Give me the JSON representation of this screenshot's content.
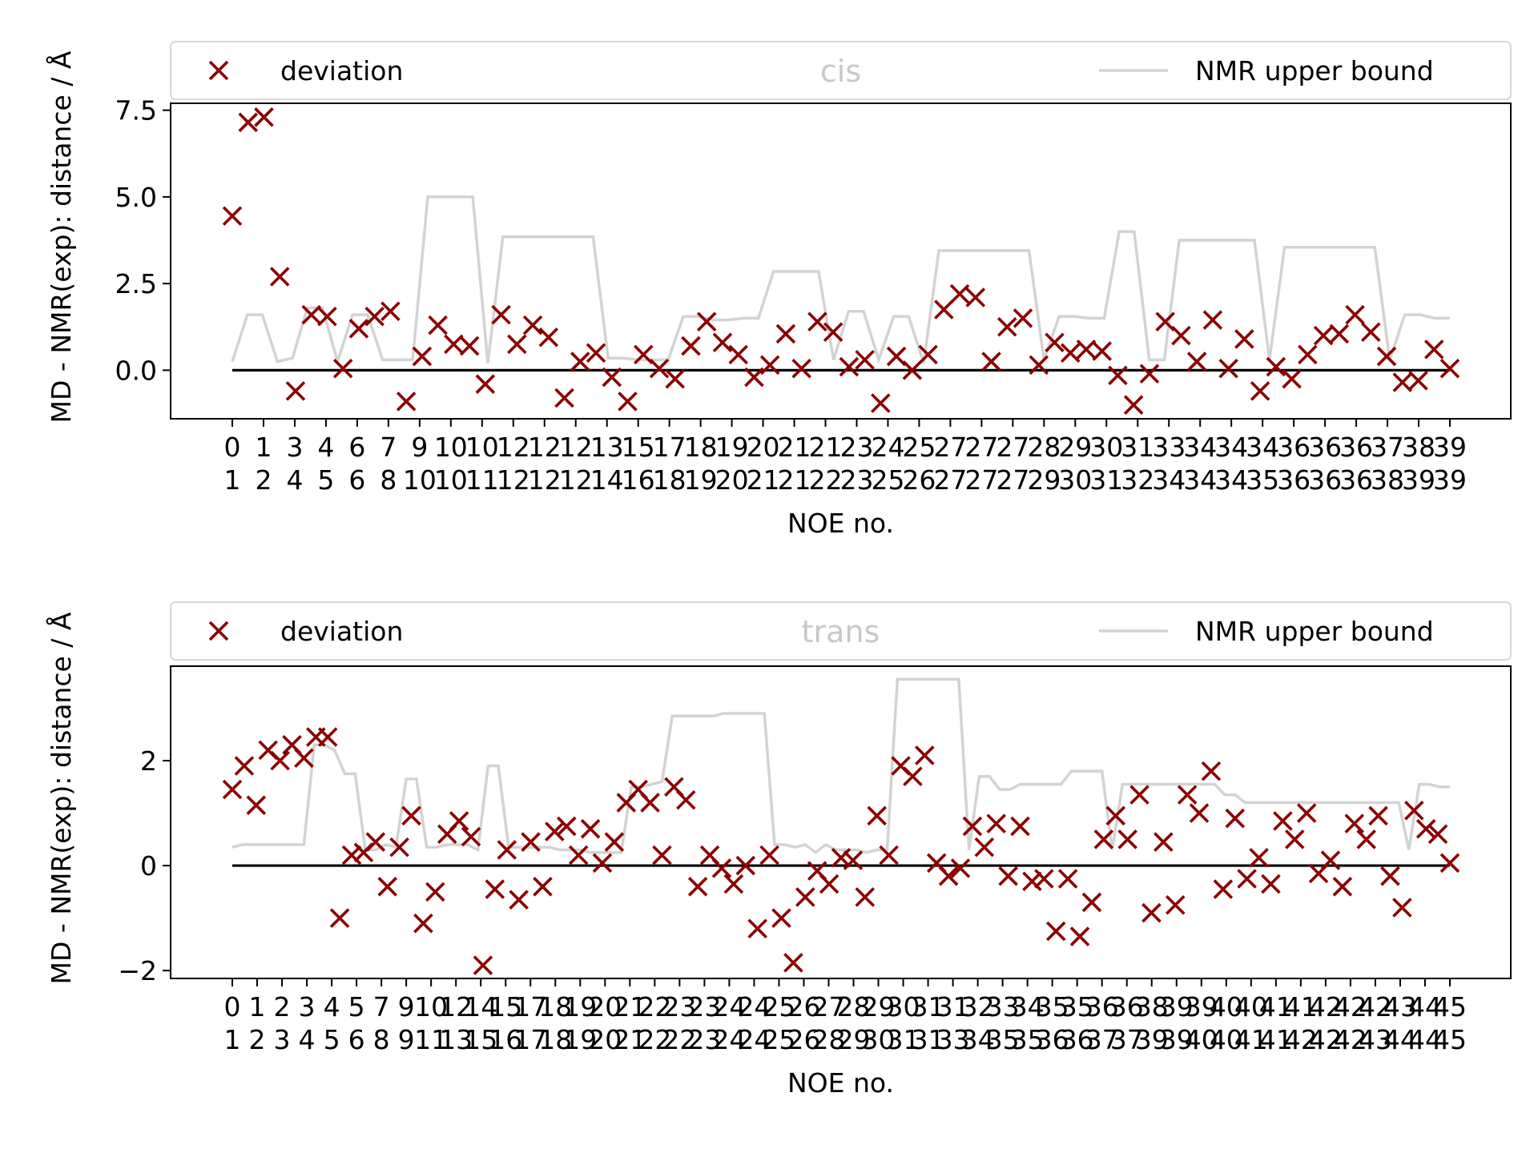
{
  "chart_data": [
    {
      "type": "scatter",
      "title": "cis",
      "xlabel": "NOE no.",
      "ylabel": "MD - NMR(exp): distance / Å",
      "ylim": [
        -1.4,
        7.7
      ],
      "yticks": [
        0.0,
        2.5,
        5.0,
        7.5
      ],
      "ytick_labels": [
        "0.0",
        "2.5",
        "5.0",
        "7.5"
      ],
      "tick_labels_row1": [
        "0",
        "1",
        "3",
        "4",
        "6",
        "7",
        "9",
        "10",
        "10",
        "12",
        "12",
        "12",
        "13",
        "15",
        "17",
        "18",
        "19",
        "20",
        "21",
        "21",
        "23",
        "24",
        "25",
        "27",
        "27",
        "27",
        "28",
        "29",
        "30",
        "31",
        "33",
        "34",
        "34",
        "34",
        "36",
        "36",
        "36",
        "37",
        "38",
        "39"
      ],
      "tick_labels_row2": [
        "1",
        "2",
        "4",
        "5",
        "6",
        "8",
        "10",
        "10",
        "11",
        "12",
        "12",
        "12",
        "14",
        "16",
        "18",
        "19",
        "20",
        "21",
        "21",
        "22",
        "23",
        "25",
        "26",
        "27",
        "27",
        "27",
        "29",
        "30",
        "31",
        "32",
        "34",
        "34",
        "34",
        "35",
        "36",
        "36",
        "36",
        "38",
        "39",
        "39"
      ],
      "legend": {
        "placement": "top",
        "scatter_label": "deviation",
        "line_label": "NMR upper bound"
      },
      "colors": {
        "deviation": "#8b0000",
        "upper_bound": "#d3d3d3",
        "zero_line": "#000000"
      },
      "deviation": [
        4.45,
        7.15,
        7.3,
        2.7,
        -0.6,
        1.6,
        1.55,
        0.05,
        1.2,
        1.55,
        1.7,
        -0.9,
        0.4,
        1.3,
        0.75,
        0.7,
        -0.4,
        1.6,
        0.75,
        1.3,
        0.95,
        -0.8,
        0.25,
        0.5,
        -0.2,
        -0.9,
        0.45,
        0.05,
        -0.25,
        0.7,
        1.4,
        0.8,
        0.45,
        -0.2,
        0.15,
        1.05,
        0.05,
        1.4,
        1.1,
        0.1,
        0.3,
        -0.95,
        0.4,
        0.0,
        0.45,
        1.75,
        2.2,
        2.1,
        0.25,
        1.25,
        1.5,
        0.15,
        0.8,
        0.5,
        0.6,
        0.55,
        -0.15,
        -1.0,
        -0.1,
        1.4,
        1.0,
        0.25,
        1.45,
        0.05,
        0.9,
        -0.6,
        0.1,
        -0.25,
        0.45,
        1.0,
        1.05,
        1.6,
        1.1,
        0.4,
        -0.35,
        -0.3,
        0.6,
        0.05
      ],
      "upper_bound": [
        0.25,
        1.6,
        1.6,
        0.25,
        0.35,
        1.8,
        1.8,
        0.25,
        1.6,
        1.6,
        0.3,
        0.3,
        0.3,
        5.0,
        5.0,
        5.0,
        5.0,
        0.2,
        3.85,
        3.85,
        3.85,
        3.85,
        3.85,
        3.85,
        3.85,
        0.35,
        0.35,
        0.3,
        0.3,
        0.3,
        1.55,
        1.55,
        1.45,
        1.45,
        1.5,
        1.5,
        2.85,
        2.85,
        2.85,
        2.85,
        0.3,
        1.7,
        1.7,
        0.3,
        1.55,
        1.55,
        0.2,
        3.45,
        3.45,
        3.45,
        3.45,
        3.45,
        3.45,
        3.45,
        0.3,
        1.55,
        1.55,
        1.5,
        1.5,
        4.0,
        4.0,
        0.3,
        0.3,
        3.75,
        3.75,
        3.75,
        3.75,
        3.75,
        3.75,
        0.3,
        3.55,
        3.55,
        3.55,
        3.55,
        3.55,
        3.55,
        3.55,
        0.3,
        1.6,
        1.6,
        1.5,
        1.5
      ]
    },
    {
      "type": "scatter",
      "title": "trans",
      "xlabel": "NOE no.",
      "ylabel": "MD - NMR(exp): distance / Å",
      "ylim": [
        -2.15,
        3.8
      ],
      "yticks": [
        -2,
        0,
        2
      ],
      "ytick_labels": [
        "−2",
        "0",
        "2"
      ],
      "tick_labels_row1": [
        "0",
        "1",
        "2",
        "3",
        "4",
        "5",
        "7",
        "9",
        "10",
        "12",
        "14",
        "15",
        "17",
        "18",
        "19",
        "20",
        "21",
        "22",
        "23",
        "23",
        "24",
        "24",
        "25",
        "26",
        "27",
        "28",
        "29",
        "30",
        "31",
        "31",
        "32",
        "33",
        "34",
        "35",
        "35",
        "36",
        "36",
        "38",
        "39",
        "39",
        "40",
        "40",
        "41",
        "41",
        "42",
        "42",
        "42",
        "43",
        "44",
        "45"
      ],
      "tick_labels_row2": [
        "1",
        "2",
        "3",
        "4",
        "5",
        "6",
        "8",
        "9",
        "11",
        "13",
        "15",
        "16",
        "17",
        "18",
        "19",
        "20",
        "21",
        "22",
        "22",
        "23",
        "24",
        "24",
        "25",
        "26",
        "28",
        "29",
        "30",
        "31",
        "31",
        "33",
        "34",
        "35",
        "35",
        "36",
        "36",
        "37",
        "37",
        "39",
        "39",
        "40",
        "40",
        "41",
        "41",
        "42",
        "42",
        "42",
        "43",
        "44",
        "44",
        "45"
      ],
      "legend": {
        "placement": "top",
        "scatter_label": "deviation",
        "line_label": "NMR upper bound"
      },
      "colors": {
        "deviation": "#8b0000",
        "upper_bound": "#d3d3d3",
        "zero_line": "#000000"
      },
      "deviation": [
        1.45,
        1.9,
        1.15,
        2.2,
        2.0,
        2.3,
        2.05,
        2.45,
        2.45,
        -1.0,
        0.2,
        0.25,
        0.45,
        -0.4,
        0.35,
        0.95,
        -1.1,
        -0.5,
        0.6,
        0.85,
        0.55,
        -1.9,
        -0.45,
        0.3,
        -0.65,
        0.45,
        -0.4,
        0.65,
        0.75,
        0.2,
        0.7,
        0.05,
        0.45,
        1.2,
        1.45,
        1.2,
        0.2,
        1.5,
        1.25,
        -0.4,
        0.2,
        -0.05,
        -0.35,
        0.0,
        -1.2,
        0.2,
        -1.0,
        -1.85,
        -0.6,
        -0.1,
        -0.35,
        0.15,
        0.1,
        -0.6,
        0.95,
        0.2,
        1.9,
        1.7,
        2.1,
        0.05,
        -0.2,
        -0.05,
        0.75,
        0.35,
        0.8,
        -0.2,
        0.75,
        -0.3,
        -0.25,
        -1.25,
        -0.25,
        -1.35,
        -0.7,
        0.5,
        0.95,
        0.5,
        1.35,
        -0.9,
        0.45,
        -0.75,
        1.35,
        1.0,
        1.8,
        -0.45,
        0.9,
        -0.25,
        0.15,
        -0.35,
        0.85,
        0.5,
        1.0,
        -0.15,
        0.1,
        -0.4,
        0.8,
        0.5,
        0.95,
        -0.2,
        -0.8,
        1.05,
        0.7,
        0.6,
        0.05
      ],
      "upper_bound": [
        0.35,
        0.4,
        0.4,
        0.4,
        0.4,
        0.4,
        0.4,
        0.4,
        2.3,
        2.3,
        2.2,
        1.75,
        1.75,
        0.3,
        0.3,
        0.4,
        0.35,
        1.65,
        1.65,
        0.35,
        0.35,
        0.4,
        0.4,
        0.4,
        0.3,
        1.9,
        1.9,
        0.35,
        0.35,
        0.35,
        0.35,
        0.35,
        0.3,
        0.3,
        0.3,
        0.25,
        0.25,
        0.25,
        0.25,
        1.5,
        1.5,
        1.55,
        1.6,
        2.85,
        2.85,
        2.85,
        2.85,
        2.85,
        2.9,
        2.9,
        2.9,
        2.9,
        2.9,
        0.4,
        0.4,
        0.35,
        0.4,
        0.25,
        0.4,
        0.3,
        0.3,
        0.3,
        0.25,
        0.3,
        0.3,
        3.55,
        3.55,
        3.55,
        3.55,
        3.55,
        3.55,
        3.55,
        0.3,
        1.7,
        1.7,
        1.45,
        1.45,
        1.55,
        1.55,
        1.55,
        1.55,
        1.55,
        1.8,
        1.8,
        1.8,
        1.8,
        0.3,
        1.55,
        1.55,
        1.55,
        1.55,
        1.55,
        1.55,
        1.55,
        1.55,
        1.55,
        1.55,
        1.35,
        1.35,
        1.2,
        1.2,
        1.2,
        1.2,
        1.2,
        1.2,
        1.2,
        1.2,
        1.2,
        1.2,
        1.2,
        1.2,
        1.2,
        1.2,
        1.2,
        1.2,
        0.3,
        1.55,
        1.55,
        1.5,
        1.5
      ]
    }
  ]
}
